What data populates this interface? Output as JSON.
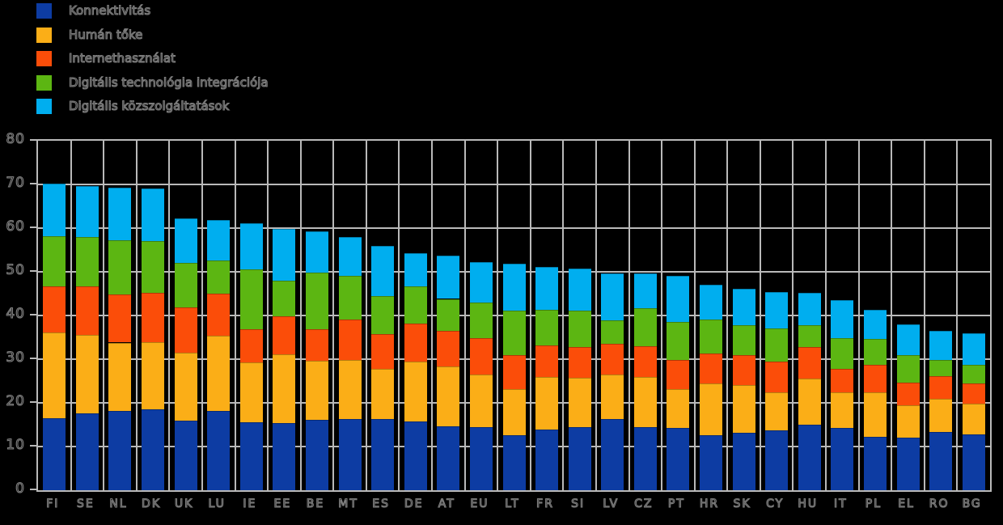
{
  "chart_data": {
    "type": "bar",
    "stacked": true,
    "categories": [
      "FI",
      "SE",
      "NL",
      "DK",
      "UK",
      "LU",
      "IE",
      "EE",
      "BE",
      "MT",
      "ES",
      "DE",
      "AT",
      "EU",
      "LT",
      "FR",
      "SI",
      "LV",
      "CZ",
      "PT",
      "HR",
      "SK",
      "CY",
      "HU",
      "IT",
      "PL",
      "EL",
      "RO",
      "BG"
    ],
    "series": [
      {
        "name": "Konnektivitás",
        "color": "#0d3ca3",
        "values": [
          16.5,
          17.6,
          18.2,
          18.5,
          16.0,
          18.2,
          15.5,
          15.3,
          16.2,
          16.3,
          16.3,
          15.8,
          14.7,
          14.5,
          12.6,
          13.9,
          14.4,
          16.3,
          14.5,
          14.3,
          12.6,
          13.1,
          13.7,
          15.0,
          14.2,
          12.3,
          12.0,
          13.3,
          12.7
        ]
      },
      {
        "name": "Humán tőke",
        "color": "#fbae17",
        "values": [
          19.7,
          17.9,
          15.6,
          15.4,
          15.5,
          17.2,
          13.7,
          15.8,
          13.5,
          13.6,
          11.4,
          13.6,
          13.7,
          12.0,
          10.5,
          12.1,
          11.4,
          10.1,
          11.5,
          8.8,
          11.8,
          11.0,
          8.8,
          10.6,
          8.3,
          10.2,
          7.5,
          7.7,
          7.1
        ]
      },
      {
        "name": "Internethasználat",
        "color": "#fb4d09",
        "values": [
          10.5,
          11.1,
          11.0,
          11.2,
          10.3,
          9.6,
          7.6,
          8.8,
          7.2,
          9.2,
          8.0,
          8.8,
          8.0,
          8.4,
          7.9,
          7.1,
          7.0,
          7.2,
          7.0,
          6.7,
          6.9,
          6.9,
          7.0,
          7.1,
          5.3,
          6.2,
          5.2,
          5.1,
          4.7
        ]
      },
      {
        "name": "Digitális technológia integrációja",
        "color": "#5cb612",
        "values": [
          11.5,
          11.4,
          12.4,
          12.0,
          10.2,
          7.6,
          13.8,
          8.1,
          13.0,
          9.9,
          8.8,
          8.4,
          7.4,
          8.1,
          10.1,
          8.2,
          8.4,
          5.3,
          8.6,
          8.8,
          7.8,
          6.8,
          7.6,
          5.1,
          7.0,
          5.9,
          6.3,
          3.7,
          4.2
        ]
      },
      {
        "name": "Digitális közszolgáltatások",
        "color": "#00aeef",
        "values": [
          11.9,
          11.7,
          12.1,
          12.0,
          10.3,
          9.3,
          10.5,
          11.9,
          9.3,
          9.0,
          11.4,
          7.7,
          9.9,
          9.2,
          10.8,
          9.8,
          9.6,
          10.8,
          8.0,
          10.5,
          7.9,
          8.3,
          8.3,
          7.4,
          8.8,
          6.7,
          6.9,
          6.6,
          7.3
        ]
      }
    ],
    "ylim": [
      0,
      80
    ],
    "y_ticks": [
      0,
      10,
      20,
      30,
      40,
      50,
      60,
      70,
      80
    ],
    "grid": true,
    "legend_position": "top-left",
    "background": "#000000"
  },
  "y_axis": {
    "tick_labels": [
      "0",
      "10",
      "20",
      "30",
      "40",
      "50",
      "60",
      "70",
      "80"
    ]
  },
  "style": {
    "grid_color": "#b9b9b9",
    "text_fill": "#000000",
    "text_stroke": "#7d7d7d"
  }
}
